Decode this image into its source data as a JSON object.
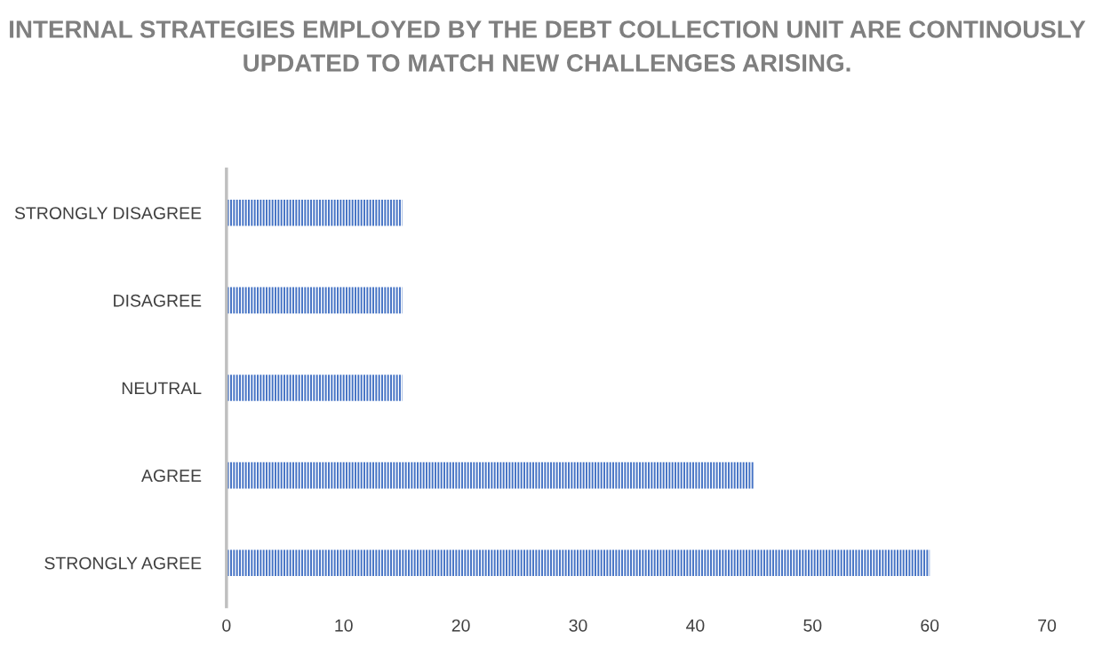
{
  "chart_data": {
    "type": "bar",
    "orientation": "horizontal",
    "title": "INTERNAL STRATEGIES EMPLOYED BY THE DEBT COLLECTION UNIT ARE CONTINOUSLY UPDATED TO MATCH NEW CHALLENGES ARISING.",
    "categories": [
      "STRONGLY DISAGREE",
      "DISAGREE",
      "NEUTRAL",
      "AGREE",
      "STRONGLY AGREE"
    ],
    "values": [
      15,
      15,
      15,
      45,
      60
    ],
    "color": "#4472c4",
    "xlim": [
      0,
      70
    ],
    "xticks": [
      0,
      10,
      20,
      30,
      40,
      50,
      60,
      70
    ],
    "grid": false,
    "legend": false
  }
}
